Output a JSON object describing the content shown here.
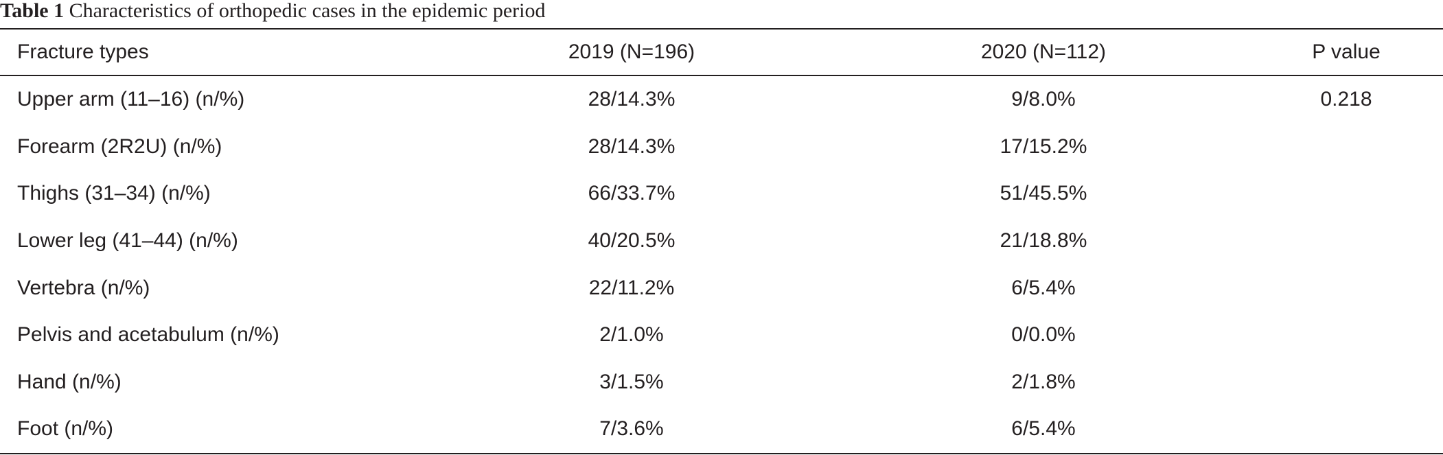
{
  "caption": {
    "label": "Table 1",
    "text": "Characteristics of orthopedic cases in the epidemic period"
  },
  "table": {
    "headers": [
      "Fracture types",
      "2019 (N=196)",
      "2020 (N=112)",
      "P value"
    ],
    "rows": [
      [
        "Upper arm (11–16) (n/%)",
        "28/14.3%",
        "9/8.0%",
        "0.218"
      ],
      [
        "Forearm (2R2U) (n/%)",
        "28/14.3%",
        "17/15.2%",
        ""
      ],
      [
        "Thighs (31–34) (n/%)",
        "66/33.7%",
        "51/45.5%",
        ""
      ],
      [
        "Lower leg (41–44) (n/%)",
        "40/20.5%",
        "21/18.8%",
        ""
      ],
      [
        "Vertebra (n/%)",
        "22/11.2%",
        "6/5.4%",
        ""
      ],
      [
        "Pelvis and acetabulum (n/%)",
        "2/1.0%",
        "0/0.0%",
        ""
      ],
      [
        "Hand (n/%)",
        "3/1.5%",
        "2/1.8%",
        ""
      ],
      [
        "Foot (n/%)",
        "7/3.6%",
        "6/5.4%",
        ""
      ]
    ]
  },
  "colors": {
    "text": "#231f20",
    "rule": "#231f20",
    "background": "#ffffff"
  }
}
